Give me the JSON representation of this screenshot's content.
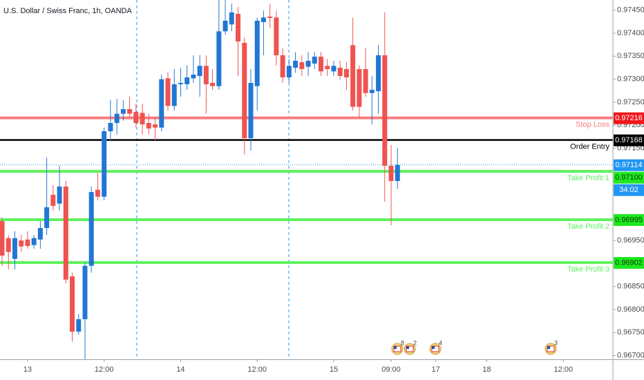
{
  "chart_data": {
    "type": "candlestick",
    "title": "U.S. Dollar / Swiss Franc, 1h, OANDA",
    "up_color": "#2177d4",
    "down_color": "#ef5350",
    "categories": [
      null,
      null,
      null,
      null,
      "13",
      null,
      null,
      null,
      null,
      null,
      null,
      null,
      null,
      null,
      null,
      null,
      "12:00",
      null,
      null,
      null,
      null,
      null,
      null,
      null,
      null,
      null,
      null,
      null,
      "14",
      null,
      null,
      null,
      null,
      null,
      null,
      null,
      null,
      null,
      null,
      null,
      "12:00",
      null,
      null,
      null,
      null,
      null,
      null,
      null,
      null,
      null,
      null,
      null,
      "15",
      null,
      null,
      null,
      null,
      null,
      null,
      null,
      null,
      "09:00",
      null,
      null,
      null,
      null,
      null,
      null,
      "17",
      null,
      null,
      null,
      null,
      null,
      null,
      null,
      "18",
      null,
      null,
      null,
      null,
      null,
      null,
      null,
      null,
      null,
      null,
      null,
      "12:00"
    ],
    "open": [
      0.96992,
      0.96955,
      0.9691,
      0.9695,
      0.96952,
      0.9694,
      0.96952,
      0.96977,
      0.97049,
      0.9703,
      0.97067,
      0.96872,
      0.96752,
      0.96779,
      0.96895,
      0.9706,
      0.97045,
      0.97187,
      0.97205,
      0.97225,
      0.97235,
      0.97229,
      0.97227,
      0.97205,
      0.97202,
      0.97195,
      0.97302,
      0.97242,
      0.97289,
      0.97289,
      0.97302,
      0.97307,
      0.97329,
      0.97292,
      0.97285,
      0.97404,
      0.97419,
      0.97442,
      0.97379,
      0.97172,
      0.97285,
      0.97424,
      0.97436,
      0.97434,
      0.97352,
      0.97304,
      0.97325,
      0.97337,
      0.97327,
      0.97334,
      0.97349,
      0.97329,
      0.97317,
      0.97325,
      0.97322,
      0.97374,
      0.97322,
      0.97322,
      0.9727,
      0.97274,
      0.97352,
      0.97112,
      0.97079,
      null,
      null,
      null,
      null,
      null,
      null,
      null,
      null,
      null,
      null,
      null,
      null,
      null,
      null,
      null,
      null,
      null,
      null,
      null,
      null,
      null,
      null,
      null,
      null,
      null,
      null
    ],
    "high": [
      0.97,
      0.96962,
      0.9697,
      0.96962,
      0.9697,
      0.96962,
      0.96992,
      0.9713,
      0.9707,
      0.97112,
      0.97079,
      0.9688,
      0.9679,
      0.96902,
      0.97067,
      0.97097,
      0.97195,
      0.97255,
      0.97257,
      0.97255,
      0.97262,
      0.97247,
      0.97247,
      0.97225,
      0.97217,
      0.9731,
      0.97315,
      0.97322,
      0.97325,
      0.9733,
      0.97352,
      0.97352,
      0.97352,
      0.97322,
      0.97472,
      0.97472,
      0.97464,
      0.97457,
      0.9739,
      0.97322,
      0.97434,
      0.97449,
      0.97464,
      0.97449,
      0.97367,
      0.97344,
      0.97359,
      0.97352,
      0.97359,
      0.97359,
      0.97359,
      0.97344,
      0.9734,
      0.9734,
      0.97337,
      0.97434,
      0.9733,
      0.97367,
      0.97307,
      0.97374,
      0.97445,
      0.97157,
      0.9715,
      null,
      null,
      null,
      null,
      null,
      null,
      null,
      null,
      null,
      null,
      null,
      null,
      null,
      null,
      null,
      null,
      null,
      null,
      null,
      null,
      null,
      null,
      null,
      null,
      null,
      null
    ],
    "low": [
      0.96895,
      0.96887,
      0.96887,
      0.96925,
      0.96932,
      0.96932,
      0.96932,
      0.96962,
      0.97015,
      0.97015,
      0.96857,
      0.9673,
      0.96745,
      0.96692,
      0.9688,
      0.97037,
      0.97037,
      0.97165,
      0.9718,
      0.9721,
      0.97217,
      0.97195,
      0.9718,
      0.9718,
      0.97167,
      0.97187,
      0.97232,
      0.97232,
      0.97262,
      0.97277,
      0.97292,
      0.97262,
      0.97225,
      0.97277,
      0.97277,
      0.97397,
      0.97404,
      0.97307,
      0.97137,
      0.97145,
      0.97232,
      0.97352,
      0.97412,
      0.9733,
      0.97292,
      0.97292,
      0.97314,
      0.97307,
      0.97307,
      0.97322,
      0.97307,
      0.97307,
      0.97307,
      0.97299,
      0.97277,
      0.97232,
      0.97217,
      0.97262,
      0.97202,
      0.97225,
      0.97034,
      0.96983,
      0.97062,
      null,
      null,
      null,
      null,
      null,
      null,
      null,
      null,
      null,
      null,
      null,
      null,
      null,
      null,
      null,
      null,
      null,
      null,
      null,
      null,
      null,
      null,
      null,
      null,
      null,
      null
    ],
    "close": [
      0.96917,
      0.96925,
      0.96955,
      0.96937,
      0.96938,
      0.96955,
      0.96977,
      0.97022,
      0.97025,
      0.97067,
      0.96865,
      0.96752,
      0.96779,
      0.96895,
      0.97055,
      0.97045,
      0.97187,
      0.97205,
      0.97225,
      0.97235,
      0.97225,
      0.97205,
      0.97202,
      0.97193,
      0.97195,
      0.973,
      0.97242,
      0.97289,
      0.97292,
      0.97304,
      0.9731,
      0.97329,
      0.97289,
      0.97285,
      0.97404,
      0.97427,
      0.97445,
      0.97382,
      0.97172,
      0.97292,
      0.97427,
      0.97434,
      0.97433,
      0.97352,
      0.97304,
      0.97329,
      0.9734,
      0.97322,
      0.9734,
      0.97349,
      0.97317,
      0.97322,
      0.97329,
      0.97307,
      0.97304,
      0.9724,
      0.9724,
      0.9727,
      0.97277,
      0.97352,
      0.97112,
      0.97079,
      0.97114,
      null,
      null,
      null,
      null,
      null,
      null,
      null,
      null,
      null,
      null,
      null,
      null,
      null,
      null,
      null,
      null,
      null,
      null,
      null,
      null,
      null,
      null,
      null,
      null,
      null,
      null
    ],
    "ylim": [
      0.96692,
      0.97472
    ],
    "yticks": [
      {
        "value": 0.9745,
        "label": "0.97450"
      },
      {
        "value": 0.974,
        "label": "0.97400"
      },
      {
        "value": 0.9735,
        "label": "0.97350"
      },
      {
        "value": 0.973,
        "label": "0.97300"
      },
      {
        "value": 0.9725,
        "label": "0.97250"
      },
      {
        "value": 0.972,
        "label": "0.97200"
      },
      {
        "value": 0.9715,
        "label": "0.97150"
      },
      {
        "value": 0.9695,
        "label": "0.96950"
      },
      {
        "value": 0.9685,
        "label": "0.96850"
      },
      {
        "value": 0.968,
        "label": "0.96800"
      },
      {
        "value": 0.9675,
        "label": "0.96750"
      },
      {
        "value": 0.967,
        "label": "0.96700"
      }
    ],
    "levels": [
      {
        "name": "Stop Loss",
        "value": 0.97216,
        "color": "#f77c80",
        "tag_color": "#f0161b",
        "tag_text_color": "#ffffff"
      },
      {
        "name": "Order Entry",
        "value": 0.97168,
        "color": "#000000",
        "tag_color": "#000000",
        "tag_text_color": "#ffffff",
        "name_color": "#000000"
      },
      {
        "name": "Take Profit 1",
        "value": 0.971,
        "value_label": "0.97100",
        "color": "#5ff25f",
        "tag_color": "#1ee81e",
        "tag_text_color": "#0b3d0b"
      },
      {
        "name": "Take Profit 2",
        "value": 0.96995,
        "color": "#5ff25f",
        "tag_color": "#1ee81e",
        "tag_text_color": "#0b3d0b"
      },
      {
        "name": "Take Profit 3",
        "value": 0.96902,
        "color": "#5ff25f",
        "tag_color": "#1ee81e",
        "tag_text_color": "#0b3d0b"
      }
    ],
    "current_price": {
      "value": 0.97114,
      "countdown": "34:02",
      "color": "#2196f3"
    },
    "events": [
      8,
      2,
      4,
      3
    ]
  }
}
